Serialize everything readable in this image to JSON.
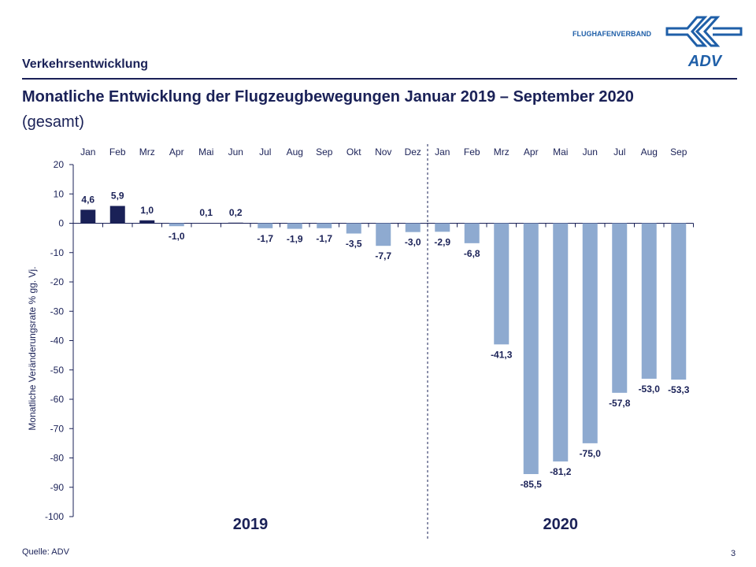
{
  "header": {
    "section": "Verkehrsentwicklung",
    "title": "Monatliche Entwicklung der Flugzeugbewegungen Januar 2019 – September 2020",
    "subtitle": "(gesamt)",
    "logo_text": "FLUGHAFENVERBAND",
    "logo_mark": "ADV"
  },
  "footer": {
    "source": "Quelle: ADV",
    "page": "3"
  },
  "colors": {
    "text": "#1a2157",
    "positive": "#1a2157",
    "negative": "#8eaad0"
  },
  "chart_data": {
    "type": "bar",
    "categories": [
      "Jan",
      "Feb",
      "Mrz",
      "Apr",
      "Mai",
      "Jun",
      "Jul",
      "Aug",
      "Sep",
      "Okt",
      "Nov",
      "Dez",
      "Jan",
      "Feb",
      "Mrz",
      "Apr",
      "Mai",
      "Jun",
      "Jul",
      "Aug",
      "Sep"
    ],
    "values": [
      4.6,
      5.9,
      1.0,
      -1.0,
      0.1,
      0.2,
      -1.7,
      -1.9,
      -1.7,
      -3.5,
      -7.7,
      -3.0,
      -2.9,
      -6.8,
      -41.3,
      -85.5,
      -81.2,
      -75.0,
      -57.8,
      -53.0,
      -53.3
    ],
    "data_labels": [
      "4,6",
      "5,9",
      "1,0",
      "-1,0",
      "0,1",
      "0,2",
      "-1,7",
      "-1,9",
      "-1,7",
      "-3,5",
      "-7,7",
      "-3,0",
      "-2,9",
      "-6,8",
      "-41,3",
      "-85,5",
      "-81,2",
      "-75,0",
      "-57,8",
      "-53,0",
      "-53,3"
    ],
    "groups": [
      {
        "label": "2019",
        "months": 12
      },
      {
        "label": "2020",
        "months": 9
      }
    ],
    "ylabel": "Monatliche Veränderungsrate % gg. Vj.",
    "ylim": [
      -100,
      20
    ],
    "yticks": [
      20,
      10,
      0,
      -10,
      -20,
      -30,
      -40,
      -50,
      -60,
      -70,
      -80,
      -90,
      -100
    ],
    "grid": false
  }
}
